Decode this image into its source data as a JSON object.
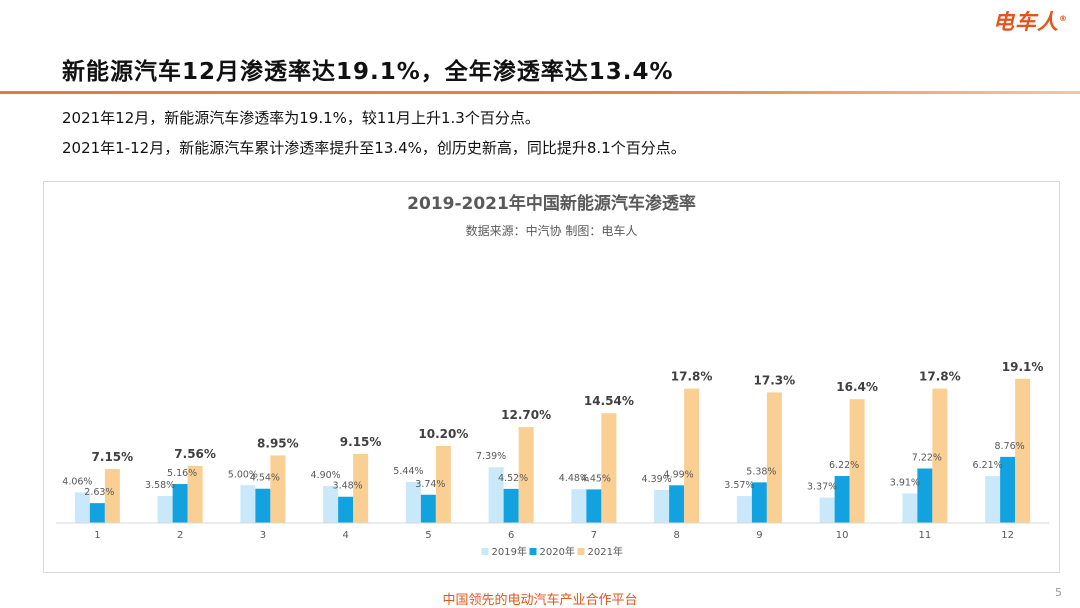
{
  "logo": {
    "text": "电车人",
    "reg": "®"
  },
  "page_title": "新能源汽车12月渗透率达19.1%，全年渗透率达13.4%",
  "description": [
    "2021年12月，新能源汽车渗透率为19.1%，较11月上升1.3个百分点。",
    "2021年1-12月，新能源汽车累计渗透率提升至13.4%，创历史新高，同比提升8.1个百分点。"
  ],
  "footer": {
    "tagline": "中国领先的电动汽车产业合作平台",
    "page_number": "5"
  },
  "colors": {
    "s2019": "#c9e9fa",
    "s2020": "#12a2df",
    "s2021": "#f9cf93",
    "accent": "#e2561d"
  },
  "chart_data": {
    "type": "bar",
    "title": "2019-2021年中国新能源汽车渗透率",
    "subtitle": "数据来源：中汽协   制图：电车人",
    "xlabel": "",
    "ylabel": "",
    "ylim": [
      0,
      22
    ],
    "grid": false,
    "legend_position": "bottom-center",
    "categories": [
      "1",
      "2",
      "3",
      "4",
      "5",
      "6",
      "7",
      "8",
      "9",
      "10",
      "11",
      "12"
    ],
    "series": [
      {
        "name": "2019年",
        "values": [
          4.06,
          3.58,
          5.0,
          4.9,
          5.44,
          7.39,
          4.48,
          4.39,
          3.57,
          3.37,
          3.91,
          6.21
        ],
        "labels": [
          "4.06%",
          "3.58%",
          "5.00%",
          "4.90%",
          "5.44%",
          "7.39%",
          "4.48%",
          "4.39%",
          "3.57%",
          "3.37%",
          "3.91%",
          "6.21%"
        ]
      },
      {
        "name": "2020年",
        "values": [
          2.63,
          5.16,
          4.54,
          3.48,
          3.74,
          4.52,
          4.45,
          4.99,
          5.38,
          6.22,
          7.22,
          8.76
        ],
        "labels": [
          "2.63%",
          "5.16%",
          "4.54%",
          "3.48%",
          "3.74%",
          "4.52%",
          "4.45%",
          "4.99%",
          "5.38%",
          "6.22%",
          "7.22%",
          "8.76%"
        ]
      },
      {
        "name": "2021年",
        "values": [
          7.15,
          7.56,
          8.95,
          9.15,
          10.2,
          12.7,
          14.54,
          17.8,
          17.3,
          16.4,
          17.8,
          19.1
        ],
        "labels": [
          "7.15%",
          "7.56%",
          "8.95%",
          "9.15%",
          "10.20%",
          "12.70%",
          "14.54%",
          "17.8%",
          "17.3%",
          "16.4%",
          "17.8%",
          "19.1%"
        ]
      }
    ]
  }
}
